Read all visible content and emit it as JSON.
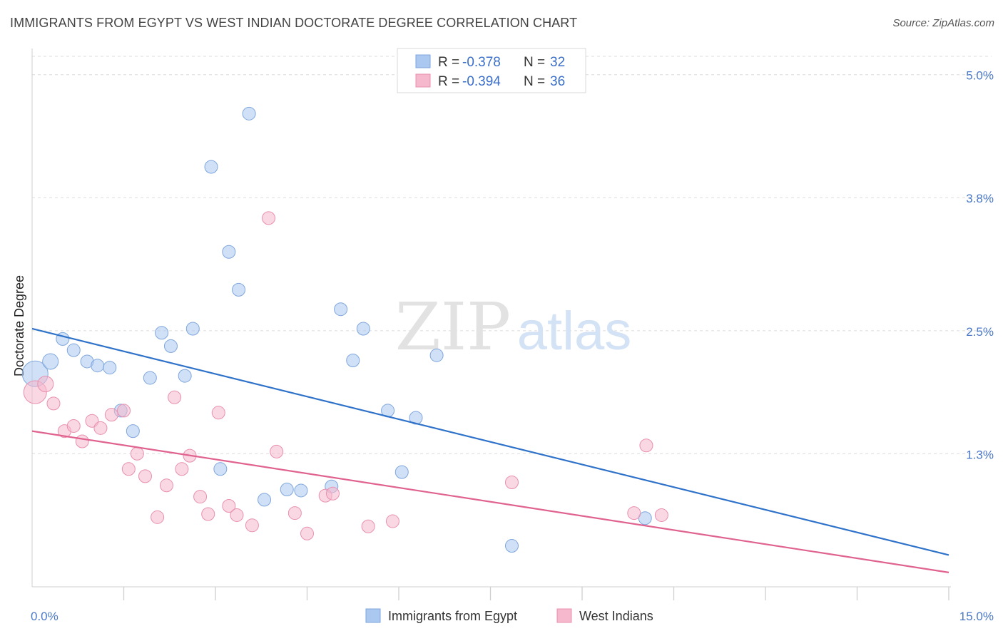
{
  "header": {
    "title": "IMMIGRANTS FROM EGYPT VS WEST INDIAN DOCTORATE DEGREE CORRELATION CHART",
    "source": "Source: ZipAtlas.com"
  },
  "watermark": {
    "zip": "ZIP",
    "atlas": "atlas"
  },
  "legend_top": {
    "rows": [
      {
        "r_label": "R =",
        "r_value": "-0.378",
        "n_label": "N =",
        "n_value": "32",
        "color": "#aac8f0"
      },
      {
        "r_label": "R =",
        "r_value": "-0.394",
        "n_label": "N =",
        "n_value": "36",
        "color": "#f6b8cc"
      }
    ]
  },
  "chart_data": {
    "type": "scatter",
    "title": "IMMIGRANTS FROM EGYPT VS WEST INDIAN DOCTORATE DEGREE CORRELATION CHART",
    "xlabel": "",
    "ylabel": "Doctorate Degree",
    "xlim": [
      0,
      15
    ],
    "ylim": [
      0,
      5.2
    ],
    "x_ticks": [
      {
        "value": 0,
        "label": "0.0%"
      },
      {
        "value": 15,
        "label": "15.0%"
      }
    ],
    "y_ticks": [
      {
        "value": 1.3,
        "label": "1.3%"
      },
      {
        "value": 2.5,
        "label": "2.5%"
      },
      {
        "value": 3.8,
        "label": "3.8%"
      },
      {
        "value": 5.0,
        "label": "5.0%"
      }
    ],
    "grid": true,
    "legend_position": "bottom-center",
    "series": [
      {
        "name": "Immigrants from Egypt",
        "color": "#aac8f0",
        "stroke": "#7fa6dc",
        "line_color": "#2f72c9",
        "trend": [
          [
            0,
            2.52
          ],
          [
            15,
            0.31
          ]
        ],
        "points": [
          {
            "x": 0.05,
            "y": 2.08,
            "s": 18
          },
          {
            "x": 0.3,
            "y": 2.2,
            "s": 11
          },
          {
            "x": 0.5,
            "y": 2.42,
            "s": 9
          },
          {
            "x": 0.68,
            "y": 2.31,
            "s": 9
          },
          {
            "x": 0.9,
            "y": 2.2,
            "s": 9
          },
          {
            "x": 1.07,
            "y": 2.16,
            "s": 9
          },
          {
            "x": 1.27,
            "y": 2.14,
            "s": 9
          },
          {
            "x": 1.45,
            "y": 1.72,
            "s": 9
          },
          {
            "x": 1.65,
            "y": 1.52,
            "s": 9
          },
          {
            "x": 1.93,
            "y": 2.04,
            "s": 9
          },
          {
            "x": 2.12,
            "y": 2.48,
            "s": 9
          },
          {
            "x": 2.27,
            "y": 2.35,
            "s": 9
          },
          {
            "x": 2.5,
            "y": 2.06,
            "s": 9
          },
          {
            "x": 2.63,
            "y": 2.52,
            "s": 9
          },
          {
            "x": 2.93,
            "y": 4.1,
            "s": 9
          },
          {
            "x": 3.08,
            "y": 1.15,
            "s": 9
          },
          {
            "x": 3.22,
            "y": 3.27,
            "s": 9
          },
          {
            "x": 3.38,
            "y": 2.9,
            "s": 9
          },
          {
            "x": 3.55,
            "y": 4.62,
            "s": 9
          },
          {
            "x": 3.8,
            "y": 0.85,
            "s": 9
          },
          {
            "x": 4.17,
            "y": 0.95,
            "s": 9
          },
          {
            "x": 4.4,
            "y": 0.94,
            "s": 9
          },
          {
            "x": 4.9,
            "y": 0.98,
            "s": 9
          },
          {
            "x": 5.05,
            "y": 2.71,
            "s": 9
          },
          {
            "x": 5.25,
            "y": 2.21,
            "s": 9
          },
          {
            "x": 5.42,
            "y": 2.52,
            "s": 9
          },
          {
            "x": 5.82,
            "y": 1.72,
            "s": 9
          },
          {
            "x": 6.05,
            "y": 1.12,
            "s": 9
          },
          {
            "x": 6.28,
            "y": 1.65,
            "s": 9
          },
          {
            "x": 6.62,
            "y": 2.26,
            "s": 9
          },
          {
            "x": 10.03,
            "y": 0.67,
            "s": 9
          },
          {
            "x": 7.85,
            "y": 0.4,
            "s": 9
          }
        ]
      },
      {
        "name": "West Indians",
        "color": "#f6b8cc",
        "stroke": "#e890ae",
        "line_color": "#e0628f",
        "trend": [
          [
            0,
            1.52
          ],
          [
            15,
            0.14
          ]
        ],
        "points": [
          {
            "x": 0.05,
            "y": 1.9,
            "s": 16
          },
          {
            "x": 0.22,
            "y": 1.98,
            "s": 11
          },
          {
            "x": 0.35,
            "y": 1.79,
            "s": 9
          },
          {
            "x": 0.53,
            "y": 1.52,
            "s": 9
          },
          {
            "x": 0.68,
            "y": 1.57,
            "s": 9
          },
          {
            "x": 0.82,
            "y": 1.42,
            "s": 9
          },
          {
            "x": 0.98,
            "y": 1.62,
            "s": 9
          },
          {
            "x": 1.12,
            "y": 1.55,
            "s": 9
          },
          {
            "x": 1.3,
            "y": 1.68,
            "s": 9
          },
          {
            "x": 1.5,
            "y": 1.72,
            "s": 9
          },
          {
            "x": 1.58,
            "y": 1.15,
            "s": 9
          },
          {
            "x": 1.72,
            "y": 1.3,
            "s": 9
          },
          {
            "x": 1.85,
            "y": 1.08,
            "s": 9
          },
          {
            "x": 2.05,
            "y": 0.68,
            "s": 9
          },
          {
            "x": 2.2,
            "y": 0.99,
            "s": 9
          },
          {
            "x": 2.33,
            "y": 1.85,
            "s": 9
          },
          {
            "x": 2.45,
            "y": 1.15,
            "s": 9
          },
          {
            "x": 2.58,
            "y": 1.28,
            "s": 9
          },
          {
            "x": 2.75,
            "y": 0.88,
            "s": 9
          },
          {
            "x": 2.88,
            "y": 0.71,
            "s": 9
          },
          {
            "x": 3.05,
            "y": 1.7,
            "s": 9
          },
          {
            "x": 3.22,
            "y": 0.79,
            "s": 9
          },
          {
            "x": 3.35,
            "y": 0.7,
            "s": 9
          },
          {
            "x": 3.6,
            "y": 0.6,
            "s": 9
          },
          {
            "x": 3.87,
            "y": 3.6,
            "s": 9
          },
          {
            "x": 4.0,
            "y": 1.32,
            "s": 9
          },
          {
            "x": 4.3,
            "y": 0.72,
            "s": 9
          },
          {
            "x": 4.5,
            "y": 0.52,
            "s": 9
          },
          {
            "x": 4.8,
            "y": 0.89,
            "s": 9
          },
          {
            "x": 4.92,
            "y": 0.91,
            "s": 9
          },
          {
            "x": 5.5,
            "y": 0.59,
            "s": 9
          },
          {
            "x": 5.9,
            "y": 0.64,
            "s": 9
          },
          {
            "x": 7.85,
            "y": 1.02,
            "s": 9
          },
          {
            "x": 10.05,
            "y": 1.38,
            "s": 9
          },
          {
            "x": 10.3,
            "y": 0.7,
            "s": 9
          },
          {
            "x": 9.85,
            "y": 0.72,
            "s": 9
          }
        ]
      }
    ]
  }
}
